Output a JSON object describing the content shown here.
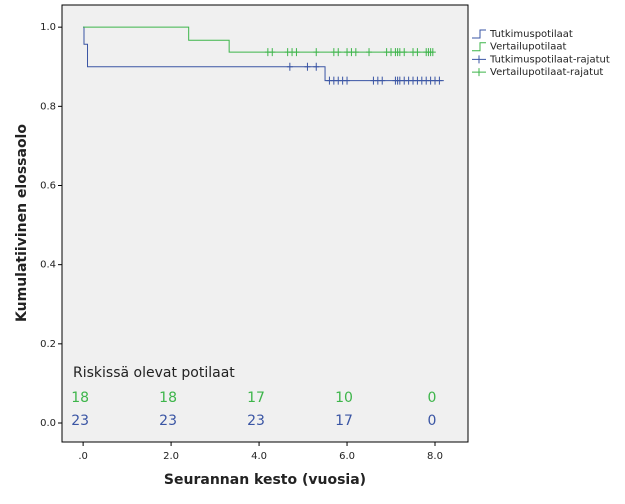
{
  "chart_data": {
    "type": "survival",
    "xlabel": "Seurannan kesto (vuosia)",
    "ylabel": "Kumulatiivinen elossaolo",
    "xlim": [
      -0.48,
      8.75
    ],
    "ylim": [
      -0.048,
      1.056
    ],
    "xticks": [
      {
        "value": 0,
        "label": ".0"
      },
      {
        "value": 2,
        "label": "2.0"
      },
      {
        "value": 4,
        "label": "4.0"
      },
      {
        "value": 6,
        "label": "6.0"
      },
      {
        "value": 8,
        "label": "8.0"
      }
    ],
    "yticks": [
      {
        "value": 0,
        "label": "0.0"
      },
      0.2,
      0.4,
      0.6,
      0.8,
      {
        "value": 1,
        "label": "1.0"
      }
    ],
    "series": [
      {
        "name": "Tutkimuspotilaat",
        "color": "#3a55a4",
        "kind": "step",
        "x": [
          0,
          0.02,
          0.1,
          5.5,
          8.2
        ],
        "values": [
          1.0,
          0.957,
          0.9,
          0.865,
          0.865
        ]
      },
      {
        "name": "Vertailupotilaat",
        "color": "#3db54a",
        "kind": "step",
        "x": [
          0,
          2.4,
          3.32,
          7.95
        ],
        "values": [
          1.0,
          0.967,
          0.937,
          0.937
        ]
      },
      {
        "name": "Tutkimuspotilaat-rajatut",
        "color": "#3a55a4",
        "kind": "censor",
        "x": [
          4.7,
          5.1,
          5.3,
          5.6,
          5.7,
          5.8,
          5.9,
          6.0,
          6.6,
          6.7,
          6.8,
          7.1,
          7.15,
          7.2,
          7.3,
          7.4,
          7.5,
          7.6,
          7.7,
          7.8,
          7.9,
          8.0,
          8.1
        ],
        "values": [
          0.9,
          0.9,
          0.9,
          0.865,
          0.865,
          0.865,
          0.865,
          0.865,
          0.865,
          0.865,
          0.865,
          0.865,
          0.865,
          0.865,
          0.865,
          0.865,
          0.865,
          0.865,
          0.865,
          0.865,
          0.865,
          0.865,
          0.865
        ]
      },
      {
        "name": "Vertailupotilaat-rajatut",
        "color": "#3db54a",
        "kind": "censor",
        "x": [
          4.2,
          4.3,
          4.65,
          4.75,
          4.85,
          5.3,
          5.7,
          5.8,
          6.0,
          6.1,
          6.2,
          6.5,
          6.9,
          7.0,
          7.1,
          7.15,
          7.2,
          7.3,
          7.5,
          7.6,
          7.8,
          7.85,
          7.9,
          7.95
        ],
        "values": [
          0.937,
          0.937,
          0.937,
          0.937,
          0.937,
          0.937,
          0.937,
          0.937,
          0.937,
          0.937,
          0.937,
          0.937,
          0.937,
          0.937,
          0.937,
          0.937,
          0.937,
          0.937,
          0.937,
          0.937,
          0.937,
          0.937,
          0.937,
          0.937
        ]
      }
    ],
    "at_risk": {
      "title": "Riskissä olevat potilaat",
      "rows": [
        {
          "color": "#3db54a",
          "values": [
            "18",
            "18",
            "17",
            "10",
            "0"
          ]
        },
        {
          "color": "#3a55a4",
          "values": [
            "23",
            "23",
            "23",
            "17",
            "0"
          ]
        }
      ]
    }
  }
}
